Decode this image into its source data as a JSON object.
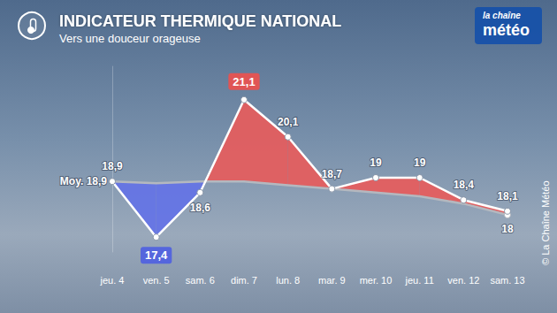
{
  "chart_data": {
    "type": "line",
    "title": "INDICATEUR THERMIQUE NATIONAL",
    "subtitle": "Vers une douceur orageuse",
    "logo": [
      "la chaîne",
      "météo"
    ],
    "credit": "© La Chaîne Météo",
    "categories": [
      "jeu. 4",
      "ven. 5",
      "sam. 6",
      "dim. 7",
      "lun. 8",
      "mar. 9",
      "mer. 10",
      "jeu. 11",
      "ven. 12",
      "sam. 13"
    ],
    "series": [
      {
        "color": "#ffffff",
        "values": [
          18.9,
          17.4,
          18.6,
          21.1,
          20.1,
          18.7,
          19,
          19,
          18.4,
          18.1
        ],
        "value_labels": [
          "18,9",
          "17,4",
          "18,6",
          "21,1",
          "20,1",
          "18,7",
          "19",
          "19",
          "18,4",
          "18,1"
        ]
      },
      {
        "name": "Moy.",
        "color": "#b4b8bf",
        "values": [
          18.9,
          18.85,
          18.9,
          18.9,
          18.8,
          18.7,
          18.6,
          18.5,
          18.3,
          18.0
        ],
        "value_labels": [
          "18,9",
          null,
          null,
          null,
          null,
          null,
          null,
          null,
          null,
          "18"
        ]
      }
    ],
    "ylim": [
      17,
      22
    ],
    "grid": false,
    "tick_labels": "x",
    "data_labels": true
  }
}
